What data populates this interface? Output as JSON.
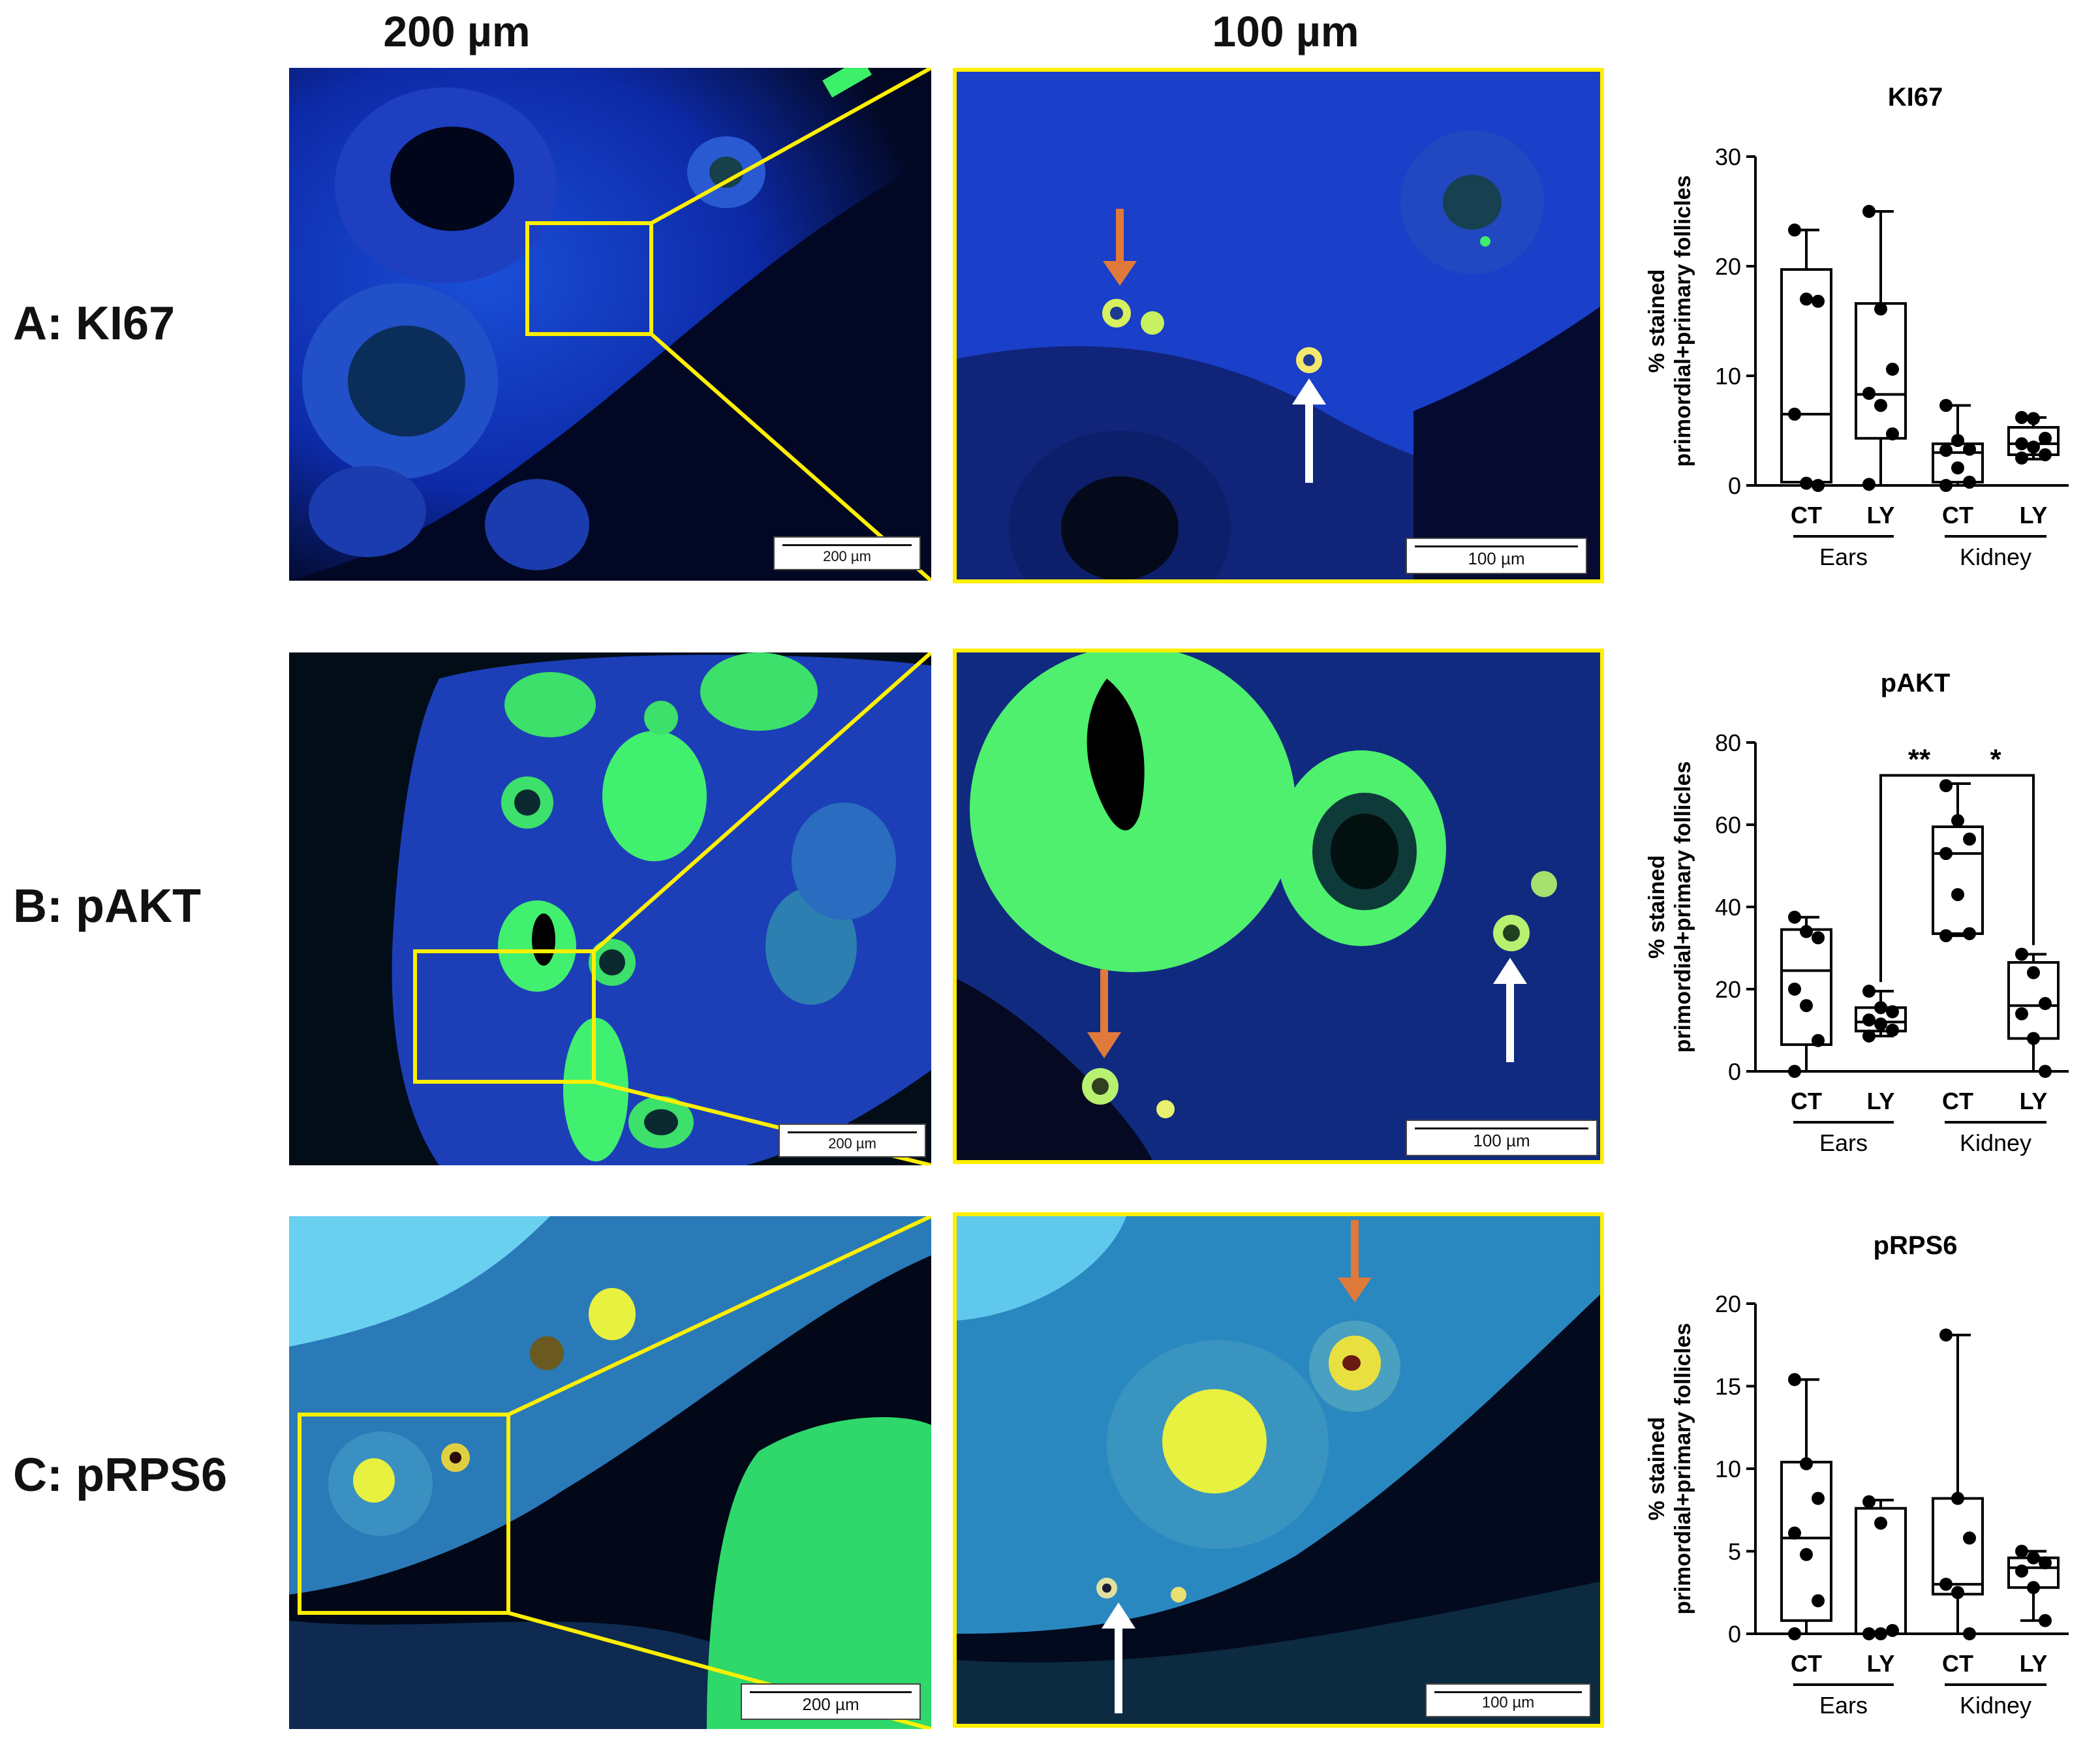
{
  "columns": {
    "left": "200 µm",
    "middle": "100 µm"
  },
  "rows": [
    {
      "label": "A: KI67",
      "scale_left": "200 µm",
      "scale_mid": "100 µm"
    },
    {
      "label": "B: pAKT",
      "scale_left": "200 µm",
      "scale_mid": "100 µm"
    },
    {
      "label": "C: pRPS6",
      "scale_left": "200 µm",
      "scale_mid": "100 µm"
    }
  ],
  "colors": {
    "zoom_box": "#ffef00",
    "arrow_orange": "#e07a3a",
    "arrow_white": "#ffffff",
    "nuclei_blue": "#1633c8",
    "stain_green": "#3cf06a"
  },
  "chart_data": [
    {
      "type": "box",
      "title": "KI67",
      "ylabel": "% stained primordial+primary follicles",
      "ylim": [
        0,
        30
      ],
      "yticks": [
        0,
        10,
        20,
        30
      ],
      "categories": [
        "CT",
        "LY",
        "CT",
        "LY"
      ],
      "groups": [
        {
          "label": "Ears",
          "members": [
            0,
            1
          ]
        },
        {
          "label": "Kidney",
          "members": [
            2,
            3
          ]
        }
      ],
      "boxes": [
        {
          "min": 0,
          "q1": 0.3,
          "median": 6.5,
          "q3": 19.7,
          "max": 23.3
        },
        {
          "min": 0,
          "q1": 4.3,
          "median": 8.3,
          "q3": 16.6,
          "max": 25
        },
        {
          "min": 0,
          "q1": 0.3,
          "median": 3,
          "q3": 3.8,
          "max": 7.3
        },
        {
          "min": 2.4,
          "q1": 2.8,
          "median": 3.8,
          "q3": 5.3,
          "max": 6.2
        }
      ],
      "points": [
        [
          23.3,
          17,
          16.8,
          6.5,
          0.2,
          0
        ],
        [
          25,
          16.1,
          10.6,
          8.4,
          7.3,
          4.7,
          0.1
        ],
        [
          7.3,
          4.1,
          3.3,
          3.2,
          1.6,
          0.3,
          0
        ],
        [
          6.2,
          6.1,
          4.3,
          3.8,
          3.5,
          2.8,
          2.5
        ]
      ],
      "significance": []
    },
    {
      "type": "box",
      "title": "pAKT",
      "ylabel": "% stained primordial+primary follicles",
      "ylim": [
        0,
        80
      ],
      "yticks": [
        0,
        20,
        40,
        60,
        80
      ],
      "categories": [
        "CT",
        "LY",
        "CT",
        "LY"
      ],
      "groups": [
        {
          "label": "Ears",
          "members": [
            0,
            1
          ]
        },
        {
          "label": "Kidney",
          "members": [
            2,
            3
          ]
        }
      ],
      "boxes": [
        {
          "min": 0,
          "q1": 6.5,
          "median": 24.5,
          "q3": 34.5,
          "max": 37.5
        },
        {
          "min": 8.6,
          "q1": 9.8,
          "median": 12,
          "q3": 15.5,
          "max": 19.5
        },
        {
          "min": 33,
          "q1": 33.5,
          "median": 53,
          "q3": 59.5,
          "max": 70
        },
        {
          "min": 0,
          "q1": 8,
          "median": 16,
          "q3": 26.5,
          "max": 28.5
        }
      ],
      "points": [
        [
          37.5,
          34,
          32.5,
          20,
          16,
          7.5,
          0
        ],
        [
          19.5,
          15.5,
          14.5,
          12.5,
          11.5,
          10,
          8.6
        ],
        [
          69.5,
          61,
          56.5,
          53,
          43,
          33.5,
          33
        ],
        [
          28.5,
          24,
          16.5,
          14,
          8,
          0
        ]
      ],
      "significance": [
        {
          "from": 1,
          "to": 2,
          "label": "**",
          "y": 72
        },
        {
          "from": 2,
          "to": 3,
          "label": "*",
          "y": 72
        }
      ]
    },
    {
      "type": "box",
      "title": "pRPS6",
      "ylabel": "% stained primordial+primary follicles",
      "ylim": [
        0,
        20
      ],
      "yticks": [
        0,
        5,
        10,
        15,
        20
      ],
      "categories": [
        "CT",
        "LY",
        "CT",
        "LY"
      ],
      "groups": [
        {
          "label": "Ears",
          "members": [
            0,
            1
          ]
        },
        {
          "label": "Kidney",
          "members": [
            2,
            3
          ]
        }
      ],
      "boxes": [
        {
          "min": 0,
          "q1": 0.8,
          "median": 5.8,
          "q3": 10.4,
          "max": 15.4
        },
        {
          "min": 0,
          "q1": 0,
          "median": 0,
          "q3": 7.6,
          "max": 8.1
        },
        {
          "min": 0,
          "q1": 2.4,
          "median": 3,
          "q3": 8.2,
          "max": 18.1
        },
        {
          "min": 0.8,
          "q1": 2.8,
          "median": 4,
          "q3": 4.6,
          "max": 5
        }
      ],
      "points": [
        [
          15.4,
          10.3,
          8.2,
          6.1,
          4.8,
          2,
          0
        ],
        [
          8,
          6.7,
          0.2,
          0,
          0
        ],
        [
          18.1,
          8.2,
          5.8,
          3,
          2.5,
          0
        ],
        [
          5,
          4.6,
          4.3,
          3.8,
          2.8,
          0.8
        ]
      ],
      "significance": []
    }
  ]
}
